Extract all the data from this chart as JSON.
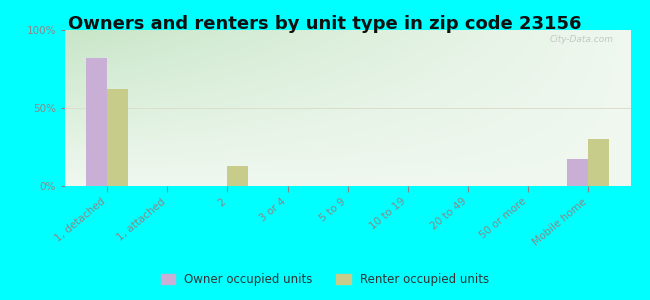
{
  "title": "Owners and renters by unit type in zip code 23156",
  "categories": [
    "1, detached",
    "1, attached",
    "2",
    "3 or 4",
    "5 to 9",
    "10 to 19",
    "20 to 49",
    "50 or more",
    "Mobile home"
  ],
  "owner_values": [
    82,
    0,
    0,
    0,
    0,
    0,
    0,
    0,
    17
  ],
  "renter_values": [
    62,
    0,
    13,
    0,
    0,
    0,
    0,
    0,
    30
  ],
  "owner_color": "#c9aed6",
  "renter_color": "#c8cc8a",
  "background_color": "#00ffff",
  "plot_bg_topleft": "#c8e6c8",
  "plot_bg_topright": "#f0f8f0",
  "plot_bg_bottom": "#e8f5e0",
  "ylim": [
    0,
    100
  ],
  "yticks": [
    0,
    50,
    100
  ],
  "ytick_labels": [
    "0%",
    "50%",
    "100%"
  ],
  "bar_width": 0.35,
  "legend_owner": "Owner occupied units",
  "legend_renter": "Renter occupied units",
  "watermark": "City-Data.com",
  "title_fontsize": 13,
  "axis_color": "#888888",
  "label_fontsize": 7.5
}
